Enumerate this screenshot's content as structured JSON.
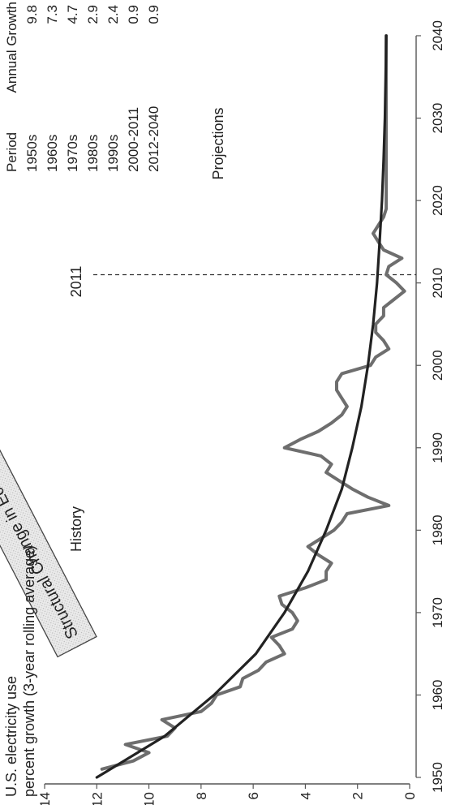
{
  "chart_data": {
    "type": "line",
    "title": "U.S. electricity use",
    "subtitle": "percent growth (3-year rolling average)",
    "xlim": [
      1950,
      2040
    ],
    "ylim": [
      0,
      14
    ],
    "x_ticks": [
      1950,
      1960,
      1970,
      1980,
      1990,
      2000,
      2010,
      2020,
      2030,
      2040
    ],
    "y_ticks": [
      0,
      2,
      4,
      6,
      8,
      10,
      12,
      14
    ],
    "grid": false,
    "series": [
      {
        "style": "jagged",
        "color": "#6e6e6e",
        "x": [
          1951,
          1952,
          1953,
          1954,
          1955,
          1956,
          1957,
          1958,
          1959,
          1960,
          1961,
          1962,
          1963,
          1964,
          1965,
          1966,
          1967,
          1968,
          1969,
          1970,
          1971,
          1972,
          1973,
          1974,
          1975,
          1976,
          1977,
          1978,
          1979,
          1980,
          1981,
          1982,
          1983,
          1984,
          1985,
          1986,
          1987,
          1988,
          1989,
          1990,
          1991,
          1992,
          1993,
          1994,
          1995,
          1996,
          1997,
          1998,
          1999,
          2000,
          2001,
          2002,
          2003,
          2004,
          2005,
          2006,
          2007,
          2008,
          2009,
          2010,
          2011,
          2012,
          2013,
          2014,
          2015,
          2016,
          2017,
          2018,
          2019,
          2020,
          2021,
          2022,
          2023,
          2024,
          2025,
          2026,
          2027,
          2028,
          2029,
          2030,
          2031,
          2032,
          2033,
          2034,
          2035,
          2036,
          2037,
          2038,
          2039,
          2040
        ],
        "y": [
          11.8,
          10.6,
          10.0,
          10.9,
          9.3,
          9.0,
          9.5,
          8.0,
          7.6,
          7.4,
          6.5,
          6.4,
          5.8,
          5.5,
          4.8,
          5.0,
          5.3,
          4.5,
          4.3,
          4.5,
          4.9,
          5.0,
          4.0,
          3.2,
          3.2,
          3.0,
          3.5,
          3.9,
          3.4,
          2.9,
          2.6,
          2.4,
          0.8,
          1.6,
          2.2,
          2.7,
          3.2,
          3.0,
          3.4,
          4.8,
          4.2,
          3.5,
          3.0,
          2.6,
          2.4,
          2.6,
          2.8,
          2.8,
          2.6,
          1.5,
          1.3,
          0.8,
          1.0,
          1.3,
          1.3,
          1.0,
          1.0,
          0.6,
          0.2,
          0.5,
          0.9,
          0.8,
          0.3,
          1.0,
          1.2,
          1.4,
          1.2,
          1.0,
          0.9,
          0.9,
          0.9,
          0.9,
          0.9,
          0.9,
          0.9,
          0.9,
          0.9,
          0.9,
          0.9,
          0.9,
          0.9,
          0.9,
          0.9,
          0.9,
          0.9,
          0.9,
          0.9,
          0.9,
          0.9,
          0.9
        ]
      },
      {
        "style": "smooth trend",
        "color": "#222222",
        "x": [
          1950,
          1955,
          1960,
          1965,
          1970,
          1975,
          1980,
          1985,
          1990,
          1995,
          2000,
          2005,
          2010,
          2015,
          2020,
          2025,
          2030,
          2035,
          2040
        ],
        "y": [
          12.0,
          9.4,
          7.5,
          5.9,
          4.8,
          3.9,
          3.2,
          2.6,
          2.2,
          1.85,
          1.6,
          1.4,
          1.25,
          1.15,
          1.06,
          1.0,
          0.95,
          0.92,
          0.9
        ]
      }
    ],
    "annotations": {
      "history_label": "History",
      "projections_label": "Projections",
      "divider_year": 2011,
      "divider_label": "2011",
      "arrow_text": "Structural Change in Economy - Higher prices - Standards - Improved efficiency"
    },
    "table": {
      "headers": [
        "Period",
        "Annual Growth"
      ],
      "rows": [
        [
          "1950s",
          "9.8"
        ],
        [
          "1960s",
          "7.3"
        ],
        [
          "1970s",
          "4.7"
        ],
        [
          "1980s",
          "2.9"
        ],
        [
          "1990s",
          "2.4"
        ],
        [
          "2000-2011",
          "0.9"
        ],
        [
          "2012-2040",
          "0.9"
        ]
      ]
    }
  }
}
